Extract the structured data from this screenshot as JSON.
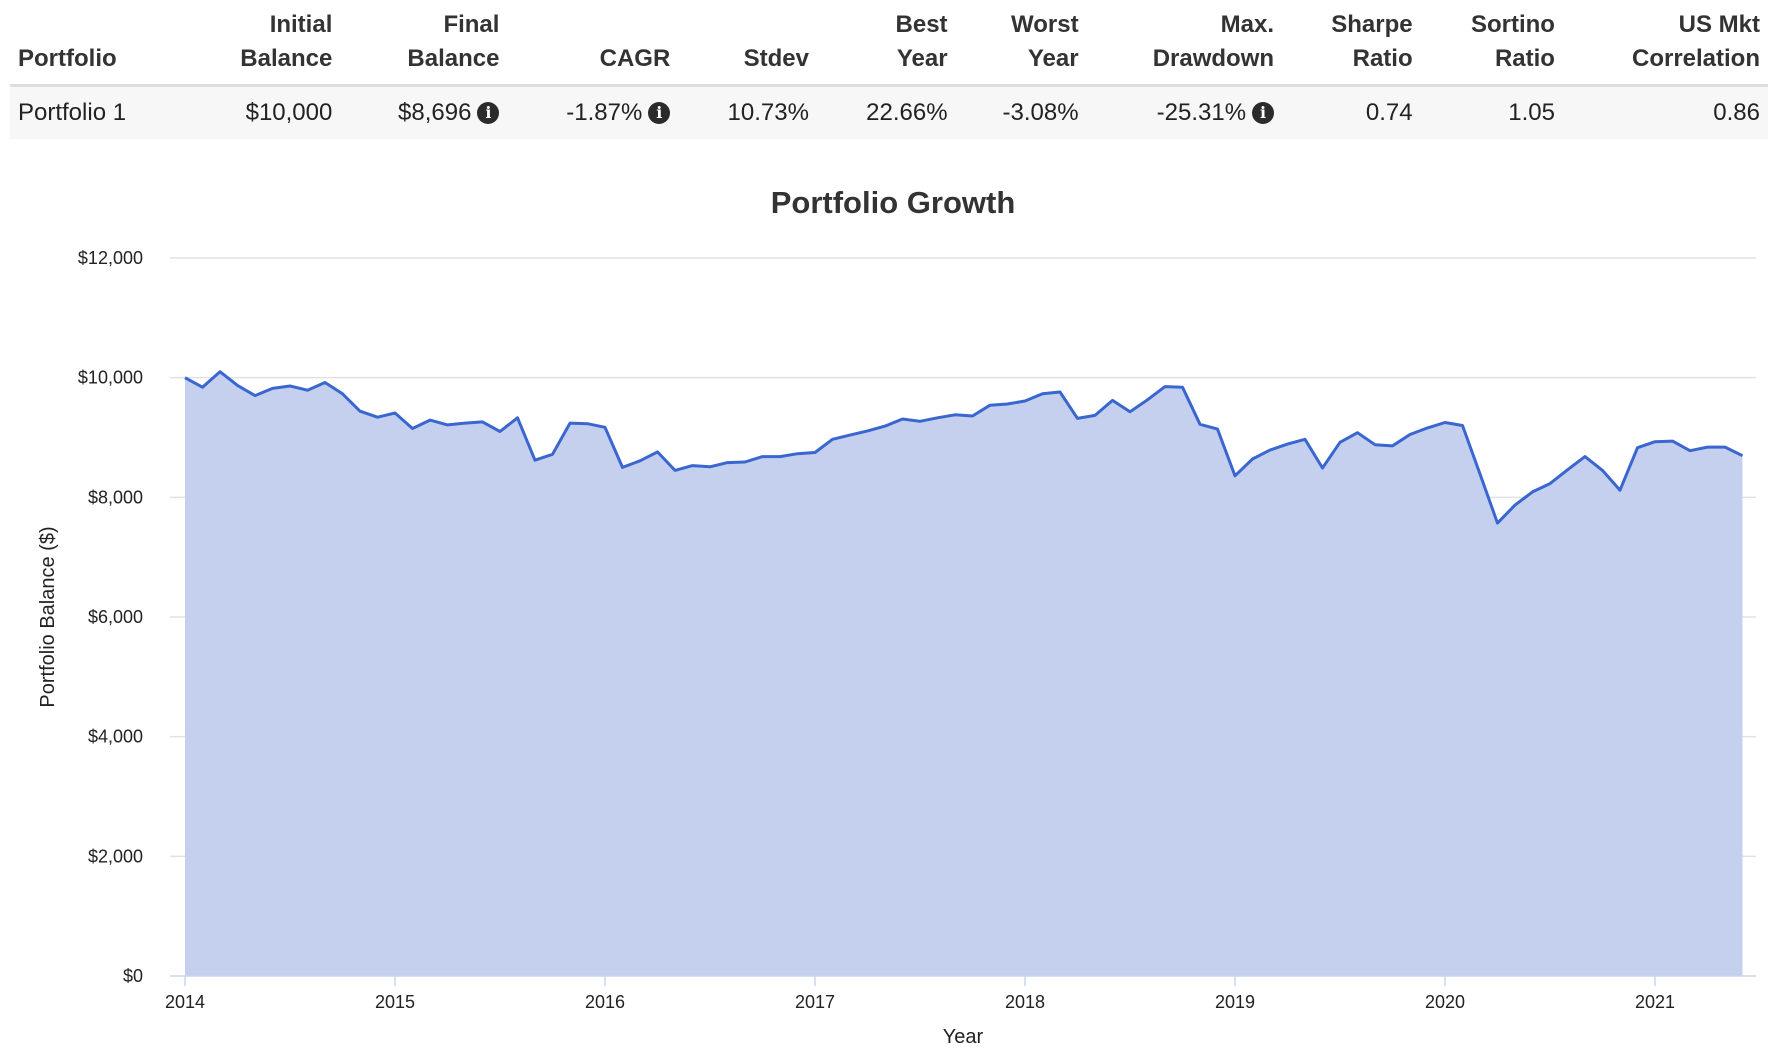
{
  "table": {
    "headers": [
      {
        "line1": "",
        "line2": "Portfolio"
      },
      {
        "line1": "Initial",
        "line2": "Balance"
      },
      {
        "line1": "Final",
        "line2": "Balance"
      },
      {
        "line1": "",
        "line2": "CAGR"
      },
      {
        "line1": "",
        "line2": "Stdev"
      },
      {
        "line1": "Best",
        "line2": "Year"
      },
      {
        "line1": "Worst",
        "line2": "Year"
      },
      {
        "line1": "Max.",
        "line2": "Drawdown"
      },
      {
        "line1": "Sharpe",
        "line2": "Ratio"
      },
      {
        "line1": "Sortino",
        "line2": "Ratio"
      },
      {
        "line1": "US Mkt",
        "line2": "Correlation"
      }
    ],
    "row": {
      "portfolio": "Portfolio 1",
      "initial_balance": "$10,000",
      "final_balance": "$8,696",
      "cagr": "-1.87%",
      "stdev": "10.73%",
      "best_year": "22.66%",
      "worst_year": "-3.08%",
      "max_drawdown": "-25.31%",
      "sharpe_ratio": "0.74",
      "sortino_ratio": "1.05",
      "us_mkt_correlation": "0.86"
    },
    "info_icon": "info-circle-icon"
  },
  "chart_data": {
    "type": "area",
    "title": "Portfolio Growth",
    "xlabel": "Year",
    "ylabel": "Portfolio Balance ($)",
    "ylim": [
      0,
      12000
    ],
    "y_ticks": [
      "$0",
      "$2,000",
      "$4,000",
      "$6,000",
      "$8,000",
      "$10,000",
      "$12,000"
    ],
    "x_ticks": [
      "2014",
      "2015",
      "2016",
      "2017",
      "2018",
      "2019",
      "2020",
      "2021"
    ],
    "grid": true,
    "colors": {
      "line": "#3a66d0",
      "fill": "#c5d0ee",
      "grid": "#e2e2e2"
    },
    "series": [
      {
        "x": [
          "2014-01",
          "2014-02",
          "2014-03",
          "2014-04",
          "2014-05",
          "2014-06",
          "2014-07",
          "2014-08",
          "2014-09",
          "2014-10",
          "2014-11",
          "2014-12",
          "2015-01",
          "2015-02",
          "2015-03",
          "2015-04",
          "2015-05",
          "2015-06",
          "2015-07",
          "2015-08",
          "2015-09",
          "2015-10",
          "2015-11",
          "2015-12",
          "2016-01",
          "2016-02",
          "2016-03",
          "2016-04",
          "2016-05",
          "2016-06",
          "2016-07",
          "2016-08",
          "2016-09",
          "2016-10",
          "2016-11",
          "2016-12",
          "2017-01",
          "2017-02",
          "2017-03",
          "2017-04",
          "2017-05",
          "2017-06",
          "2017-07",
          "2017-08",
          "2017-09",
          "2017-10",
          "2017-11",
          "2017-12",
          "2018-01",
          "2018-02",
          "2018-03",
          "2018-04",
          "2018-05",
          "2018-06",
          "2018-07",
          "2018-08",
          "2018-09",
          "2018-10",
          "2018-11",
          "2018-12",
          "2019-01",
          "2019-02",
          "2019-03",
          "2019-04",
          "2019-05",
          "2019-06",
          "2019-07",
          "2019-08",
          "2019-09",
          "2019-10",
          "2019-11",
          "2019-12",
          "2020-01",
          "2020-02",
          "2020-03",
          "2020-04",
          "2020-05",
          "2020-06",
          "2020-07",
          "2020-08",
          "2020-09",
          "2020-10",
          "2020-11",
          "2020-12",
          "2021-01",
          "2021-02",
          "2021-03",
          "2021-04",
          "2021-05",
          "2021-06"
        ],
        "values": [
          10000,
          9840,
          10100,
          9870,
          9700,
          9820,
          9860,
          9790,
          9920,
          9730,
          9440,
          9340,
          9410,
          9150,
          9290,
          9210,
          9240,
          9260,
          9100,
          9330,
          8620,
          8720,
          9240,
          9230,
          9170,
          8500,
          8610,
          8760,
          8450,
          8530,
          8510,
          8580,
          8590,
          8680,
          8680,
          8730,
          8750,
          8970,
          9040,
          9110,
          9190,
          9310,
          9270,
          9330,
          9380,
          9360,
          9540,
          9560,
          9610,
          9730,
          9760,
          9320,
          9370,
          9620,
          9430,
          9630,
          9850,
          9840,
          9220,
          9140,
          8360,
          8640,
          8790,
          8890,
          8970,
          8490,
          8920,
          9080,
          8880,
          8860,
          9050,
          9160,
          9250,
          9200,
          8390,
          7570,
          7870,
          8090,
          8230,
          8460,
          8680,
          8450,
          8120,
          8830,
          8930,
          8940,
          8780,
          8840,
          8840,
          8696
        ]
      }
    ]
  }
}
